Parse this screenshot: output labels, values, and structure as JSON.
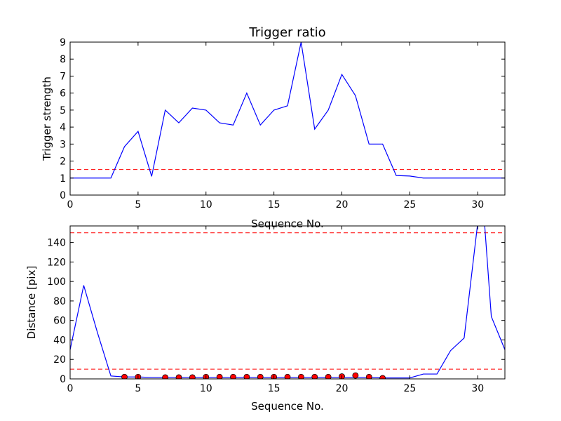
{
  "chart_data": [
    {
      "type": "line",
      "title": "Trigger ratio",
      "xlabel": "Sequence No.",
      "ylabel": "Trigger strength",
      "xlim": [
        0,
        32
      ],
      "ylim": [
        0,
        9
      ],
      "xticks": [
        0,
        5,
        10,
        15,
        20,
        25,
        30
      ],
      "yticks": [
        0,
        1,
        2,
        3,
        4,
        5,
        6,
        7,
        8,
        9
      ],
      "grid": false,
      "threshold": 1.5,
      "series": [
        {
          "color": "#0000ff",
          "x": [
            0,
            1,
            2,
            3,
            4,
            5,
            6,
            7,
            8,
            9,
            10,
            11,
            12,
            13,
            14,
            15,
            16,
            17,
            18,
            19,
            20,
            21,
            22,
            23,
            24,
            25,
            26,
            27,
            28,
            29,
            30,
            31,
            32
          ],
          "y": [
            1.0,
            1.0,
            1.0,
            1.0,
            2.85,
            3.75,
            1.1,
            5.0,
            4.25,
            5.12,
            5.0,
            4.25,
            4.12,
            6.0,
            4.12,
            5.0,
            5.25,
            9.0,
            3.88,
            5.0,
            7.1,
            5.85,
            3.0,
            3.0,
            1.15,
            1.12,
            1.0,
            1.0,
            1.0,
            1.0,
            1.0,
            1.0,
            1.0
          ]
        }
      ]
    },
    {
      "type": "line",
      "title": "",
      "xlabel": "Sequence No.",
      "ylabel": "Distance [pix]",
      "xlim": [
        0,
        32
      ],
      "ylim": [
        0,
        157
      ],
      "xticks": [
        0,
        5,
        10,
        15,
        20,
        25,
        30
      ],
      "yticks": [
        0,
        20,
        40,
        60,
        80,
        100,
        120,
        140
      ],
      "grid": false,
      "thresholds": [
        10,
        150
      ],
      "series": [
        {
          "color": "#0000ff",
          "x": [
            0,
            1,
            2,
            3,
            4,
            5,
            6,
            7,
            8,
            9,
            10,
            11,
            12,
            13,
            14,
            15,
            16,
            17,
            18,
            19,
            20,
            21,
            22,
            23,
            24,
            25,
            26,
            27,
            28,
            29,
            30,
            30.5,
            31,
            32
          ],
          "y": [
            30,
            96,
            48,
            3,
            2,
            2,
            1.5,
            1.5,
            1.5,
            1.5,
            1.5,
            1.5,
            1.5,
            1.5,
            1.5,
            1.5,
            1.5,
            1.5,
            1.5,
            1.5,
            1.5,
            1.5,
            1.5,
            1,
            1,
            1,
            5,
            5,
            29,
            42,
            160,
            160,
            64,
            30
          ]
        },
        {
          "color": "#ff0000",
          "marker": "circle",
          "x": [
            4,
            5,
            7,
            8,
            9,
            10,
            11,
            12,
            13,
            14,
            15,
            16,
            17,
            18,
            19,
            20,
            21,
            22,
            23
          ],
          "y": [
            2,
            2,
            1.5,
            1.5,
            1.5,
            2,
            2,
            2,
            2,
            2,
            2,
            2,
            2,
            2,
            2,
            2.5,
            3.5,
            2,
            0.8
          ]
        }
      ]
    }
  ],
  "colors": {
    "line": "#0000ff",
    "threshold": "#ff0000",
    "marker_fill": "#ff0000",
    "marker_edge": "#000000"
  }
}
